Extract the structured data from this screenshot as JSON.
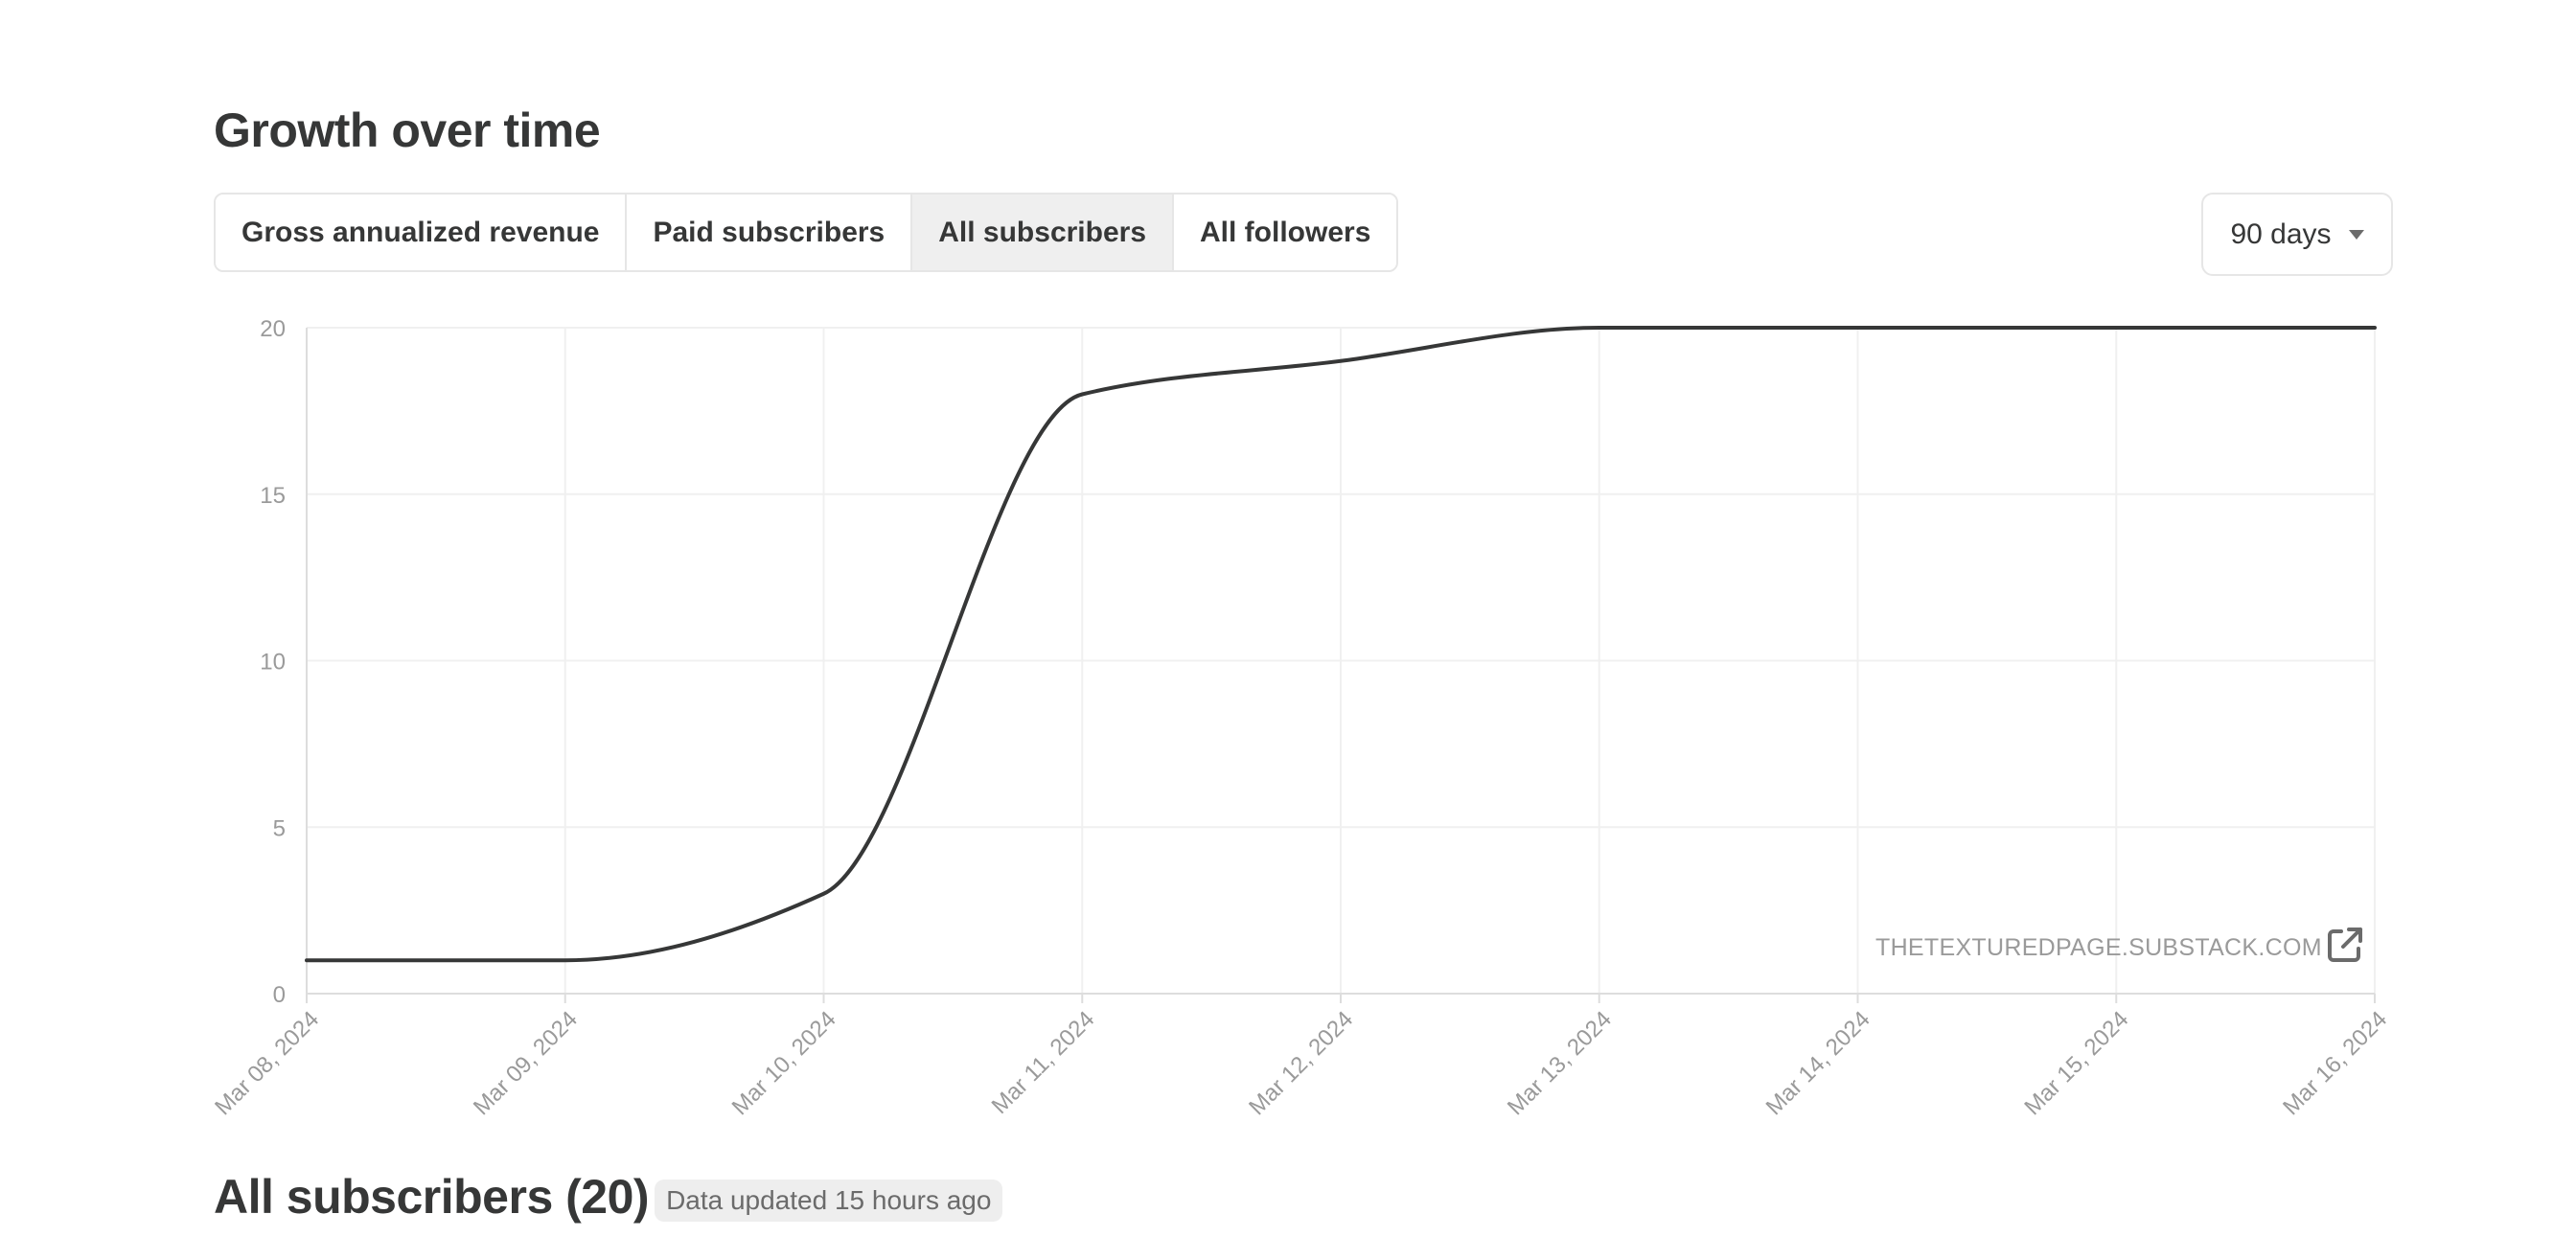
{
  "header": {
    "title": "Growth over time"
  },
  "tabs": [
    {
      "label": "Gross annualized revenue",
      "active": false
    },
    {
      "label": "Paid subscribers",
      "active": false
    },
    {
      "label": "All subscribers",
      "active": true
    },
    {
      "label": "All followers",
      "active": false
    }
  ],
  "range_select": {
    "value": "90 days"
  },
  "watermark": "THETEXTUREDPAGE.SUBSTACK.COM",
  "section": {
    "title": "All subscribers (20)",
    "badge": "Data updated 15 hours ago"
  },
  "colors": {
    "line": "#363737",
    "grid": "#f0f0f0",
    "axis": "#dddddd",
    "tick_text": "#9a9a9a"
  },
  "chart_data": {
    "type": "line",
    "x": [
      "Mar 08, 2024",
      "Mar 09, 2024",
      "Mar 10, 2024",
      "Mar 11, 2024",
      "Mar 12, 2024",
      "Mar 13, 2024",
      "Mar 14, 2024",
      "Mar 15, 2024",
      "Mar 16, 2024"
    ],
    "series": [
      {
        "values": [
          1,
          1,
          3,
          18,
          19,
          20,
          20,
          20,
          20
        ]
      }
    ],
    "yticks": [
      0,
      5,
      10,
      15,
      20
    ],
    "ylim": [
      0,
      20
    ],
    "grid": true,
    "legend": "none"
  }
}
